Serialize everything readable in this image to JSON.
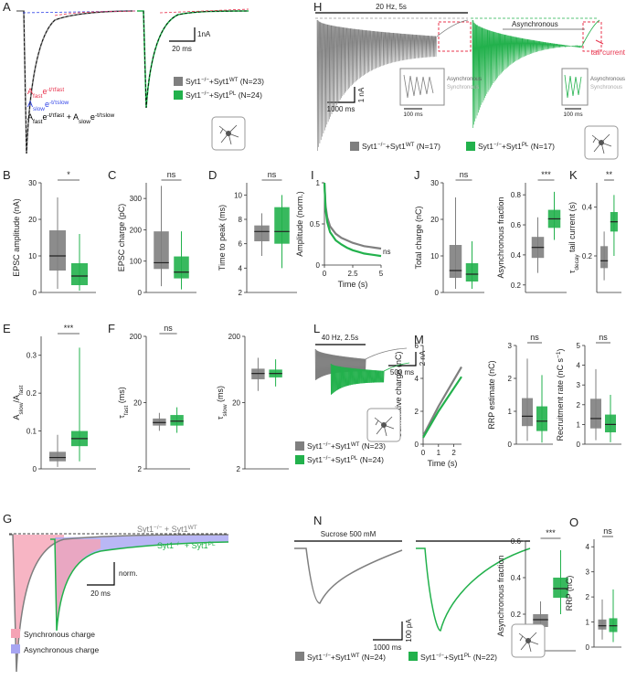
{
  "chart_data": [
    {
      "type": "box",
      "panel": "B",
      "ylabel": "EPSC amplitude (nA)",
      "ylim": [
        0,
        30
      ],
      "yticks": [
        0,
        10,
        20,
        30
      ],
      "significance": "*",
      "series": [
        {
          "color": "#7f7f7f",
          "values": [
            1,
            6,
            10,
            17,
            26
          ]
        },
        {
          "color": "#22b14c",
          "values": [
            0.5,
            2,
            4.5,
            8,
            16
          ]
        }
      ]
    },
    {
      "type": "box",
      "panel": "C",
      "ylabel": "EPSC charge (pC)",
      "ylim": [
        0,
        350
      ],
      "yticks": [
        0,
        100,
        200,
        300
      ],
      "significance": "ns",
      "series": [
        {
          "color": "#7f7f7f",
          "values": [
            20,
            75,
            95,
            195,
            340
          ]
        },
        {
          "color": "#22b14c",
          "values": [
            10,
            45,
            65,
            115,
            195
          ]
        }
      ]
    },
    {
      "type": "box",
      "panel": "D",
      "ylabel": "Time to peak (ms)",
      "ylim": [
        2,
        11
      ],
      "yticks": [
        2,
        4,
        6,
        8,
        10
      ],
      "significance": "ns",
      "series": [
        {
          "color": "#7f7f7f",
          "values": [
            5,
            6.2,
            7,
            7.5,
            8.5
          ]
        },
        {
          "color": "#22b14c",
          "values": [
            4,
            6,
            7,
            9,
            10
          ]
        }
      ]
    },
    {
      "type": "box",
      "panel": "E",
      "ylabel": [
        {
          "text": "A"
        },
        {
          "text": "slow",
          "pos": "sub"
        },
        {
          "text": "/A"
        },
        {
          "text": "fast",
          "pos": "sub"
        }
      ],
      "ylim": [
        0,
        0.35
      ],
      "yticks": [
        0,
        0.1,
        0.2,
        0.3
      ],
      "significance": "***",
      "series": [
        {
          "color": "#7f7f7f",
          "values": [
            0.005,
            0.02,
            0.03,
            0.045,
            0.09
          ]
        },
        {
          "color": "#22b14c",
          "values": [
            0.02,
            0.06,
            0.08,
            0.1,
            0.32
          ]
        }
      ]
    },
    {
      "type": "box",
      "panel": "F",
      "log": true,
      "ylabel": [
        {
          "text": "τ"
        },
        {
          "text": "fast",
          "pos": "sub"
        },
        {
          "text": " (ms)"
        }
      ],
      "ylim": [
        2,
        200
      ],
      "yticks": [
        2,
        20,
        200
      ],
      "significance": "ns",
      "series": [
        {
          "color": "#7f7f7f",
          "values": [
            7.5,
            9,
            10,
            11.5,
            14
          ]
        },
        {
          "color": "#22b14c",
          "values": [
            7,
            9,
            10.5,
            13,
            17
          ]
        }
      ]
    },
    {
      "type": "box",
      "log": true,
      "ylabel": [
        {
          "text": "τ"
        },
        {
          "text": "slow",
          "pos": "sub"
        },
        {
          "text": " (ms)"
        }
      ],
      "ylim": [
        2,
        200
      ],
      "yticks": [
        2,
        20,
        200
      ],
      "series": [
        {
          "color": "#7f7f7f",
          "values": [
            30,
            45,
            55,
            65,
            95
          ]
        },
        {
          "color": "#22b14c",
          "values": [
            35,
            48,
            55,
            63,
            90
          ]
        }
      ]
    },
    {
      "type": "box",
      "ylabel": "Asynchronous fraction",
      "ylim": [
        0,
        0.6
      ],
      "yticks": [
        0,
        0.2,
        0.4,
        0.6
      ],
      "significance": "***",
      "series": [
        {
          "color": "#7f7f7f",
          "values": [
            0.05,
            0.13,
            0.17,
            0.2,
            0.27
          ]
        },
        {
          "color": "#22b14c",
          "values": [
            0.2,
            0.29,
            0.34,
            0.4,
            0.55
          ]
        }
      ]
    },
    {
      "type": "line",
      "panel": "I",
      "ylabel": "Amplitude (norm.)",
      "xlabel": "Time (s)",
      "annotation": "ns",
      "xlim": [
        0,
        5
      ],
      "xticks": [
        0,
        2.5,
        5
      ],
      "ylim": [
        0,
        1
      ],
      "yticks": [
        0,
        0.5,
        1
      ],
      "x": [
        0,
        0.1,
        0.25,
        0.5,
        1,
        1.5,
        2,
        2.5,
        3,
        3.5,
        4,
        4.5,
        5
      ],
      "series": [
        {
          "color": "#7f7f7f",
          "values": [
            1,
            0.72,
            0.58,
            0.47,
            0.38,
            0.33,
            0.3,
            0.27,
            0.25,
            0.23,
            0.22,
            0.21,
            0.2
          ]
        },
        {
          "color": "#22b14c",
          "values": [
            1,
            0.68,
            0.52,
            0.4,
            0.3,
            0.25,
            0.21,
            0.18,
            0.16,
            0.14,
            0.13,
            0.12,
            0.11
          ]
        }
      ]
    },
    {
      "type": "box",
      "panel": "J",
      "ylabel": "Total charge (nC)",
      "ylim": [
        0,
        30
      ],
      "yticks": [
        0,
        10,
        20,
        30
      ],
      "significance": "ns",
      "series": [
        {
          "color": "#7f7f7f",
          "values": [
            1,
            4,
            6,
            13,
            26
          ]
        },
        {
          "color": "#22b14c",
          "values": [
            1,
            3,
            5,
            8,
            14
          ]
        }
      ]
    },
    {
      "type": "box",
      "ylabel": "Asynchronous fraction",
      "ylim": [
        0.15,
        0.88
      ],
      "yticks": [
        0.2,
        0.4,
        0.6,
        0.8
      ],
      "significance": "***",
      "series": [
        {
          "color": "#7f7f7f",
          "values": [
            0.28,
            0.38,
            0.45,
            0.52,
            0.65
          ]
        },
        {
          "color": "#22b14c",
          "values": [
            0.5,
            0.58,
            0.64,
            0.7,
            0.82
          ]
        }
      ]
    },
    {
      "type": "box",
      "panel": "K",
      "ylabel": [
        {
          "text": "τ"
        },
        {
          "text": "decay",
          "pos": "sub"
        },
        {
          "text": " tail current (s)"
        }
      ],
      "ylim": [
        0.05,
        0.5
      ],
      "yticks": [
        0.2,
        0.4
      ],
      "significance": "**",
      "series": [
        {
          "color": "#7f7f7f",
          "values": [
            0.1,
            0.15,
            0.18,
            0.24,
            0.3
          ]
        },
        {
          "color": "#22b14c",
          "values": [
            0.2,
            0.3,
            0.34,
            0.38,
            0.45
          ]
        }
      ]
    },
    {
      "type": "line",
      "panel": "M",
      "ylabel": "Cumulative charge (nC)",
      "xlabel": "Time (s)",
      "xlim": [
        0,
        2.5
      ],
      "xticks": [
        0,
        1,
        2
      ],
      "ylim": [
        0,
        6
      ],
      "yticks": [
        0,
        2,
        4,
        6
      ],
      "x": [
        0,
        0.5,
        1,
        1.5,
        2,
        2.5
      ],
      "series": [
        {
          "color": "#7f7f7f",
          "values": [
            0.5,
            1.4,
            2.3,
            3.1,
            3.9,
            4.7
          ]
        },
        {
          "color": "#22b14c",
          "values": [
            0.4,
            1.2,
            2,
            2.7,
            3.4,
            4.1
          ]
        }
      ]
    },
    {
      "type": "box",
      "ylabel": "RRP estimate (nC)",
      "ylim": [
        0,
        3
      ],
      "yticks": [
        0,
        1,
        2,
        3
      ],
      "significance": "ns",
      "series": [
        {
          "color": "#7f7f7f",
          "values": [
            0.1,
            0.55,
            0.85,
            1.4,
            2.6
          ]
        },
        {
          "color": "#22b14c",
          "values": [
            0.05,
            0.4,
            0.7,
            1.15,
            2.1
          ]
        }
      ]
    },
    {
      "type": "box",
      "ylabel": [
        {
          "text": "Recruitment rate (nC s"
        },
        {
          "text": "−1",
          "pos": "sup"
        },
        {
          "text": ")"
        }
      ],
      "ylim": [
        0,
        5
      ],
      "yticks": [
        0,
        1,
        2,
        3,
        4,
        5
      ],
      "significance": "ns",
      "series": [
        {
          "color": "#7f7f7f",
          "values": [
            0.2,
            0.8,
            1.3,
            2.3,
            3.8
          ]
        },
        {
          "color": "#22b14c",
          "values": [
            0.1,
            0.6,
            1,
            1.5,
            2.5
          ]
        }
      ]
    },
    {
      "type": "box",
      "panel": "O",
      "ylabel": "RRP (nC)",
      "ylim": [
        0,
        4.3
      ],
      "yticks": [
        0,
        1,
        2,
        3,
        4
      ],
      "significance": "ns",
      "series": [
        {
          "color": "#7f7f7f",
          "values": [
            0.3,
            0.7,
            0.85,
            1.1,
            1.9
          ]
        },
        {
          "color": "#22b14c",
          "values": [
            0.2,
            0.6,
            0.85,
            1.15,
            2.3
          ]
        }
      ]
    }
  ],
  "figure": {
    "A": {
      "panel": "A",
      "scale_x": "20 ms",
      "scale_y": "1nA",
      "equations": [
        [
          {
            "text": "A"
          },
          {
            "text": "fast",
            "pos": "sub"
          },
          {
            "text": "e"
          },
          {
            "text": "-t/τfast",
            "pos": "sup"
          }
        ],
        [
          {
            "text": "A"
          },
          {
            "text": "slow",
            "pos": "sub"
          },
          {
            "text": "e"
          },
          {
            "text": "-t/τslow",
            "pos": "sup"
          }
        ],
        [
          {
            "text": "A"
          },
          {
            "text": "fast",
            "pos": "sub"
          },
          {
            "text": "e"
          },
          {
            "text": "-t/τfast",
            "pos": "sup"
          },
          {
            "text": " + A"
          },
          {
            "text": "slow",
            "pos": "sub"
          },
          {
            "text": "e"
          },
          {
            "text": "-t/τslow",
            "pos": "sup"
          }
        ]
      ],
      "legend": [
        [
          {
            "text": "Syt1"
          },
          {
            "text": "−/−",
            "pos": "sup"
          },
          {
            "text": "+Syt1"
          },
          {
            "text": "WT",
            "pos": "sup"
          },
          {
            "text": " (N=23)"
          }
        ],
        [
          {
            "text": "Syt1"
          },
          {
            "text": "−/−",
            "pos": "sup"
          },
          {
            "text": "+Syt1"
          },
          {
            "text": "PL",
            "pos": "sup"
          },
          {
            "text": " (N=24)"
          }
        ]
      ]
    },
    "G": {
      "panel": "G",
      "scale_x": "20 ms",
      "scale_y": "norm.",
      "curve_labels": [
        [
          {
            "text": "Syt1"
          },
          {
            "text": "−/−",
            "pos": "sup"
          },
          {
            "text": " + Syt1"
          },
          {
            "text": "WT",
            "pos": "sup"
          }
        ],
        [
          {
            "text": "Syt1"
          },
          {
            "text": "−/−",
            "pos": "sup"
          },
          {
            "text": " + Syt1"
          },
          {
            "text": "PL",
            "pos": "sup"
          }
        ]
      ],
      "legend": [
        "Synchronous charge",
        "Asynchronous charge"
      ]
    },
    "H": {
      "panel": "H",
      "stim": "20 Hz, 5s",
      "async_label": "Asynchronous",
      "tail": "tail current",
      "scale_x": "1000 ms",
      "scale_y": "1 nA",
      "insets": [
        {
          "async": "Asynchronous",
          "sync": "Synchronous",
          "scale": "100 ms"
        },
        {
          "async": "Asynchronous",
          "sync": "Synchronous",
          "scale": "100 ms"
        }
      ],
      "legend": [
        [
          {
            "text": "Syt1"
          },
          {
            "text": "−/−",
            "pos": "sup"
          },
          {
            "text": "+Syt1"
          },
          {
            "text": "WT",
            "pos": "sup"
          },
          {
            "text": " (N=17)"
          }
        ],
        [
          {
            "text": "Syt1"
          },
          {
            "text": "−/−",
            "pos": "sup"
          },
          {
            "text": "+Syt1"
          },
          {
            "text": "PL",
            "pos": "sup"
          },
          {
            "text": " (N=17)"
          }
        ]
      ]
    },
    "L": {
      "panel": "L",
      "stim": "40 Hz, 2.5s",
      "scale_x": "500 ms",
      "scale_y": "2 nA",
      "legend": [
        [
          {
            "text": "Syt1"
          },
          {
            "text": "−/−",
            "pos": "sup"
          },
          {
            "text": "+Syt1"
          },
          {
            "text": "WT",
            "pos": "sup"
          },
          {
            "text": " (N=23)"
          }
        ],
        [
          {
            "text": "Syt1"
          },
          {
            "text": "−/−",
            "pos": "sup"
          },
          {
            "text": "+Syt1"
          },
          {
            "text": "PL",
            "pos": "sup"
          },
          {
            "text": " (N=24)"
          }
        ]
      ]
    },
    "N": {
      "panel": "N",
      "stim": "Sucrose 500 mM",
      "scale_x": "1000 ms",
      "scale_y": "100 pA",
      "legend": [
        [
          {
            "text": "Syt1"
          },
          {
            "text": "−/−",
            "pos": "sup"
          },
          {
            "text": "+Syt1"
          },
          {
            "text": "WT",
            "pos": "sup"
          },
          {
            "text": " (N=24)"
          }
        ],
        [
          {
            "text": "Syt1"
          },
          {
            "text": "−/−",
            "pos": "sup"
          },
          {
            "text": "+Syt1"
          },
          {
            "text": "PL",
            "pos": "sup"
          },
          {
            "text": " (N=22)"
          }
        ]
      ]
    }
  }
}
